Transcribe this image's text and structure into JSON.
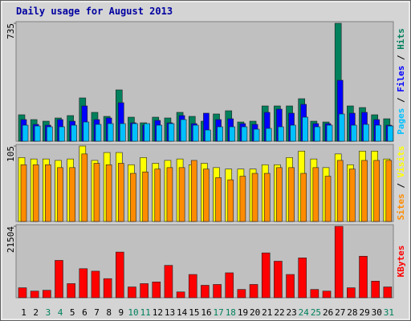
{
  "title": "Daily usage for August 2013",
  "days": {
    "categories": [
      "1",
      "2",
      "3",
      "4",
      "5",
      "6",
      "7",
      "8",
      "9",
      "10",
      "11",
      "12",
      "13",
      "14",
      "15",
      "16",
      "17",
      "18",
      "19",
      "20",
      "21",
      "22",
      "23",
      "24",
      "25",
      "26",
      "27",
      "28",
      "29",
      "30",
      "31"
    ],
    "colors": [
      "#000000",
      "#000000",
      "#00805c",
      "#00805c",
      "#000000",
      "#000000",
      "#000000",
      "#000000",
      "#000000",
      "#00805c",
      "#00805c",
      "#000000",
      "#000000",
      "#000000",
      "#000000",
      "#000000",
      "#00805c",
      "#00805c",
      "#000000",
      "#000000",
      "#000000",
      "#000000",
      "#000000",
      "#00805c",
      "#00805c",
      "#000000",
      "#000000",
      "#000000",
      "#000000",
      "#000000",
      "#00805c"
    ]
  },
  "legend_separator": " / ",
  "chart_data": [
    {
      "type": "bar",
      "ylim": [
        0,
        735
      ],
      "yticks": [
        735
      ],
      "series": [
        {
          "name": "Hits",
          "color": "#00805c",
          "values": [
            165,
            135,
            125,
            145,
            160,
            270,
            180,
            155,
            320,
            150,
            115,
            150,
            145,
            180,
            155,
            125,
            170,
            190,
            120,
            125,
            220,
            220,
            220,
            265,
            125,
            120,
            735,
            220,
            210,
            165,
            140
          ]
        },
        {
          "name": "Files",
          "color": "#0000ff",
          "values": [
            135,
            105,
            100,
            135,
            125,
            220,
            135,
            145,
            240,
            115,
            100,
            130,
            115,
            160,
            110,
            175,
            135,
            140,
            110,
            105,
            180,
            200,
            175,
            230,
            110,
            110,
            380,
            175,
            180,
            135,
            100
          ]
        },
        {
          "name": "Pages",
          "color": "#00c0ff",
          "values": [
            100,
            95,
            90,
            90,
            100,
            120,
            105,
            110,
            110,
            110,
            110,
            100,
            110,
            135,
            100,
            70,
            90,
            90,
            90,
            75,
            80,
            90,
            100,
            150,
            90,
            100,
            170,
            100,
            105,
            100,
            95
          ]
        }
      ]
    },
    {
      "type": "bar",
      "ylim": [
        0,
        105
      ],
      "yticks": [
        105
      ],
      "series": [
        {
          "name": "Visits",
          "color": "#ffff00",
          "values": [
            89,
            87,
            87,
            85,
            87,
            105,
            85,
            96,
            96,
            79,
            89,
            81,
            85,
            87,
            79,
            81,
            75,
            73,
            73,
            73,
            79,
            79,
            89,
            98,
            87,
            75,
            94,
            79,
            98,
            98,
            87
          ]
        },
        {
          "name": "Sites",
          "color": "#ff8c00",
          "values": [
            79,
            79,
            79,
            75,
            75,
            94,
            81,
            79,
            81,
            67,
            69,
            73,
            75,
            75,
            85,
            73,
            61,
            58,
            63,
            67,
            67,
            75,
            75,
            67,
            75,
            63,
            85,
            73,
            85,
            85,
            85
          ]
        }
      ]
    },
    {
      "type": "bar",
      "ylim": [
        0,
        21504
      ],
      "yticks": [
        21504
      ],
      "series": [
        {
          "name": "KBytes",
          "color": "#ff0000",
          "values": [
            3000,
            2000,
            2250,
            11250,
            4250,
            8750,
            8000,
            5750,
            13750,
            3250,
            4250,
            4750,
            9750,
            1750,
            7000,
            3750,
            4000,
            7500,
            2500,
            4000,
            13500,
            11000,
            7000,
            12000,
            2500,
            2000,
            21504,
            3000,
            12500,
            5000,
            3250
          ]
        }
      ]
    }
  ]
}
